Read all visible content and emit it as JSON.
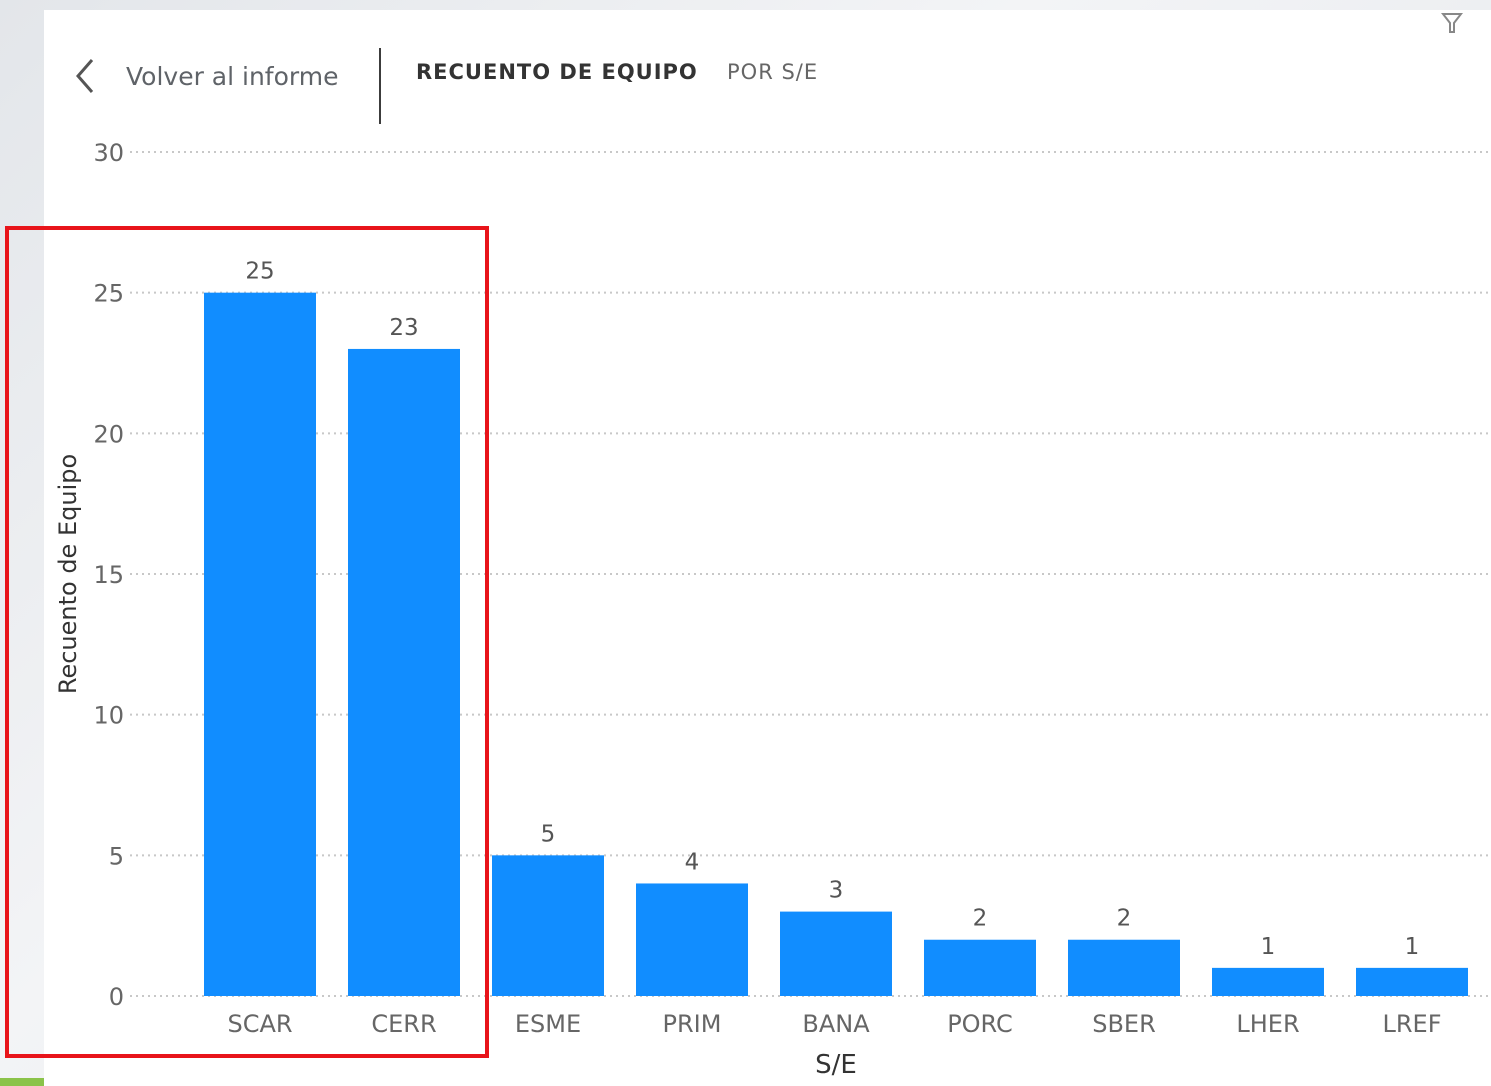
{
  "header": {
    "back_label": "Volver al informe",
    "title_main": "RECUENTO DE EQUIPO",
    "title_sub": "POR S/E"
  },
  "icons": {
    "back": "chevron-left-icon",
    "filter": "filter-icon"
  },
  "colors": {
    "bar": "#118dff",
    "highlight": "#e8141a",
    "grid": "#c8c8c8"
  },
  "chart_data": {
    "type": "bar",
    "title": "RECUENTO DE EQUIPO POR S/E",
    "categories": [
      "SCAR",
      "CERR",
      "ESME",
      "PRIM",
      "BANA",
      "PORC",
      "SBER",
      "LHER",
      "LREF"
    ],
    "values": [
      25,
      23,
      5,
      4,
      3,
      2,
      2,
      1,
      1
    ],
    "xlabel": "S/E",
    "ylabel": "Recuento de Equipo",
    "ylim": [
      0,
      30
    ],
    "yticks": [
      0,
      5,
      10,
      15,
      20,
      25,
      30
    ],
    "grid": true,
    "data_labels": true,
    "highlighted_categories": [
      "SCAR",
      "CERR"
    ]
  }
}
